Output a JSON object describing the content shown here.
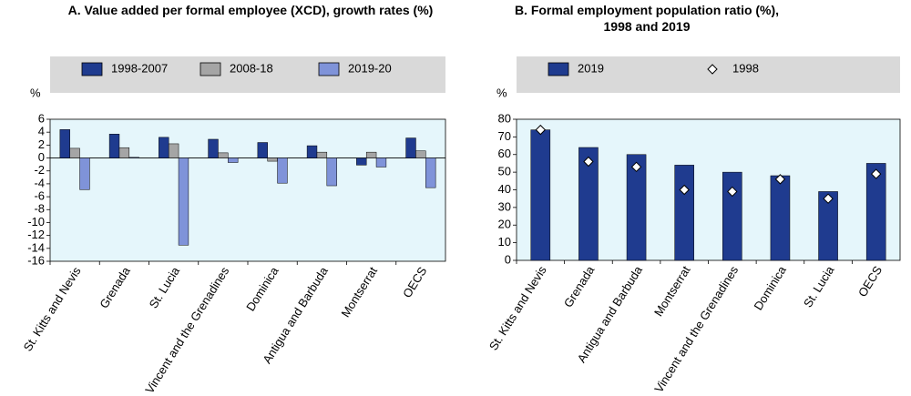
{
  "chart_data": [
    {
      "type": "bar",
      "title": "A. Value added per formal employee (XCD), growth rates (%)",
      "y_label": "%",
      "categories": [
        "St. Kitts and Nevis",
        "Grenada",
        "St. Lucia",
        "St. Vincent and the Grenadines",
        "Dominica",
        "Antigua and Barbuda",
        "Montserrat",
        "OECS"
      ],
      "series": [
        {
          "name": "1998-2007",
          "color": "#1f3b8f",
          "values": [
            4.4,
            3.7,
            3.2,
            2.9,
            2.4,
            1.9,
            -1.1,
            3.1
          ]
        },
        {
          "name": "2008-18",
          "color": "#a5a5a5",
          "values": [
            1.5,
            1.6,
            2.2,
            0.8,
            -0.5,
            0.9,
            0.9,
            1.1
          ]
        },
        {
          "name": "2019-20",
          "color": "#7f93d9",
          "values": [
            -4.9,
            0.1,
            -13.5,
            -0.7,
            -3.9,
            -4.3,
            -1.4,
            -4.6
          ]
        }
      ],
      "ylim": [
        -16,
        6
      ],
      "yticks": [
        -16,
        -14,
        -12,
        -10,
        -8,
        -6,
        -4,
        -2,
        0,
        2,
        4,
        6
      ]
    },
    {
      "type": "bar",
      "title": "B. Formal employment population ratio (%), 1998 and 2019",
      "y_label": "%",
      "categories": [
        "St. Kitts and Nevis",
        "Grenada",
        "Antigua and Barbuda",
        "Montserrat",
        "St. Vincent and the Grenadines",
        "Dominica",
        "St. Lucia",
        "OECS"
      ],
      "series": [
        {
          "name": "2019",
          "color": "#1f3b8f",
          "values": [
            74,
            64,
            60,
            54,
            50,
            48,
            39,
            55
          ]
        },
        {
          "name": "1998",
          "color": "#ffffff",
          "marker": "diamond",
          "values": [
            74,
            56,
            53,
            40,
            39,
            46,
            35,
            49
          ]
        }
      ],
      "ylim": [
        0,
        80
      ],
      "yticks": [
        0,
        10,
        20,
        30,
        40,
        50,
        60,
        70,
        80
      ]
    }
  ]
}
